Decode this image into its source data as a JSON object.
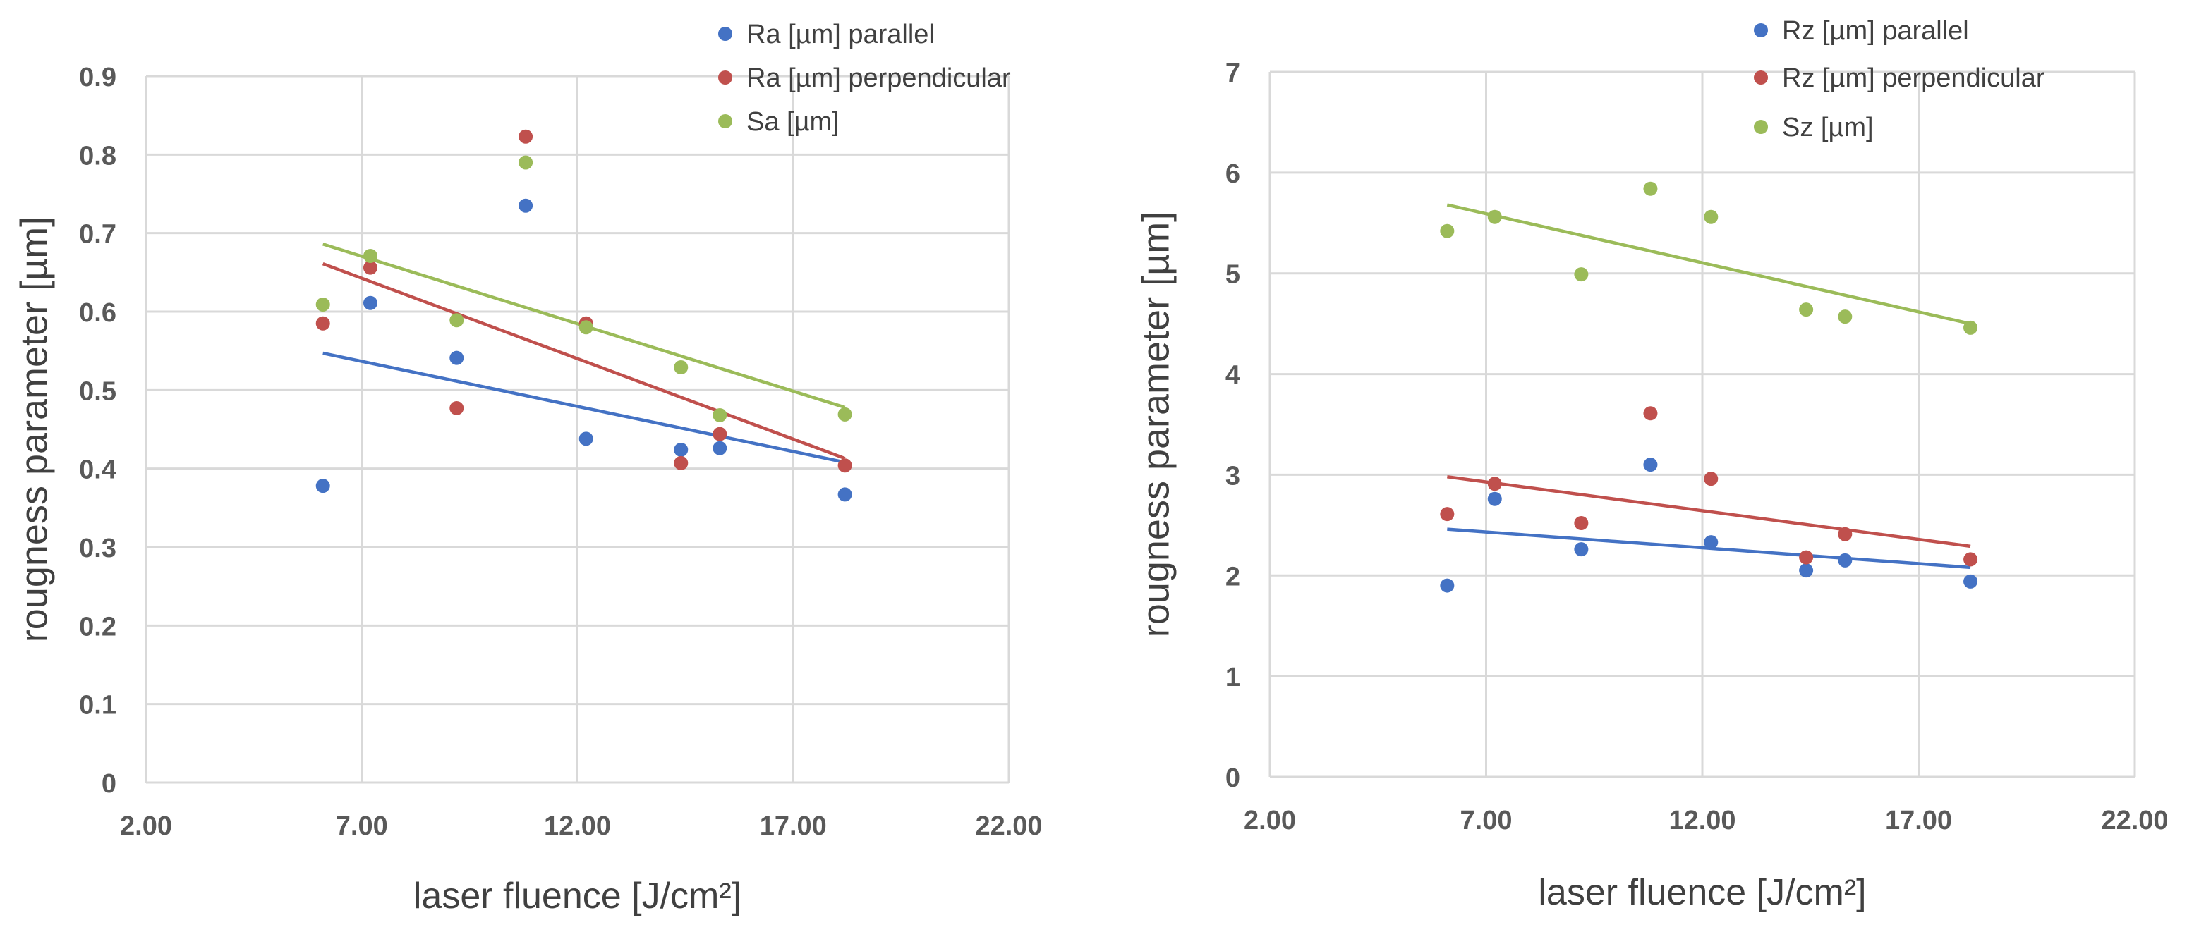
{
  "chart_data": [
    {
      "type": "scatter",
      "xlabel": "laser fluence [J/cm²]",
      "ylabel": "rougness parameter [µm]",
      "xlim": [
        2,
        22
      ],
      "ylim": [
        0,
        0.9
      ],
      "xticks": [
        2,
        7,
        12,
        17,
        22
      ],
      "xtick_labels": [
        "2.00",
        "7.00",
        "12.00",
        "17.00",
        "22.00"
      ],
      "yticks": [
        0,
        0.1,
        0.2,
        0.3,
        0.4,
        0.5,
        0.6,
        0.7,
        0.8,
        0.9
      ],
      "ytick_labels": [
        "0",
        "0.1",
        "0.2",
        "0.3",
        "0.4",
        "0.5",
        "0.6",
        "0.7",
        "0.8",
        "0.9"
      ],
      "grid": true,
      "legend_position": "top-right",
      "series": [
        {
          "name": "Ra [µm] parallel",
          "color": "#4472C4",
          "x": [
            6.1,
            7.2,
            9.2,
            10.8,
            12.2,
            14.4,
            15.3,
            18.2
          ],
          "y": [
            0.378,
            0.611,
            0.541,
            0.735,
            0.438,
            0.424,
            0.426,
            0.367
          ],
          "trend": [
            0.547,
            0.408
          ]
        },
        {
          "name": "Ra [µm] perpendicular",
          "color": "#C0504D",
          "x": [
            6.1,
            7.2,
            9.2,
            10.8,
            12.2,
            14.4,
            15.3,
            18.2
          ],
          "y": [
            0.585,
            0.656,
            0.477,
            0.823,
            0.585,
            0.407,
            0.444,
            0.404
          ],
          "trend": [
            0.661,
            0.413
          ]
        },
        {
          "name": "Sa [µm]",
          "color": "#9BBB59",
          "x": [
            6.1,
            7.2,
            9.2,
            10.8,
            12.2,
            14.4,
            15.3,
            18.2
          ],
          "y": [
            0.609,
            0.671,
            0.589,
            0.79,
            0.58,
            0.529,
            0.468,
            0.469
          ],
          "trend": [
            0.686,
            0.478
          ]
        }
      ]
    },
    {
      "type": "scatter",
      "xlabel": "laser fluence [J/cm²]",
      "ylabel": "rougness parameter [µm]",
      "xlim": [
        2,
        22
      ],
      "ylim": [
        0,
        7
      ],
      "xticks": [
        2,
        7,
        12,
        17,
        22
      ],
      "xtick_labels": [
        "2.00",
        "7.00",
        "12.00",
        "17.00",
        "22.00"
      ],
      "yticks": [
        0,
        1,
        2,
        3,
        4,
        5,
        6,
        7
      ],
      "ytick_labels": [
        "0",
        "1",
        "2",
        "3",
        "4",
        "5",
        "6",
        "7"
      ],
      "grid": true,
      "legend_position": "top-right",
      "series": [
        {
          "name": "Rz [µm] parallel",
          "color": "#4472C4",
          "x": [
            6.1,
            7.2,
            9.2,
            10.8,
            12.2,
            14.4,
            15.3,
            18.2
          ],
          "y": [
            1.9,
            2.76,
            2.26,
            3.1,
            2.33,
            2.05,
            2.15,
            1.94
          ],
          "trend": [
            2.46,
            2.08
          ]
        },
        {
          "name": "Rz [µm] perpendicular",
          "color": "#C0504D",
          "x": [
            6.1,
            7.2,
            9.2,
            10.8,
            12.2,
            14.4,
            15.3,
            18.2
          ],
          "y": [
            2.61,
            2.91,
            2.52,
            3.61,
            2.96,
            2.18,
            2.41,
            2.16
          ],
          "trend": [
            2.98,
            2.29
          ]
        },
        {
          "name": "Sz [µm]",
          "color": "#9BBB59",
          "x": [
            6.1,
            7.2,
            9.2,
            10.8,
            12.2,
            14.4,
            15.3,
            18.2
          ],
          "y": [
            5.42,
            5.56,
            4.99,
            5.84,
            5.56,
            4.64,
            4.57,
            4.46
          ],
          "trend": [
            5.68,
            4.5
          ]
        }
      ]
    }
  ]
}
